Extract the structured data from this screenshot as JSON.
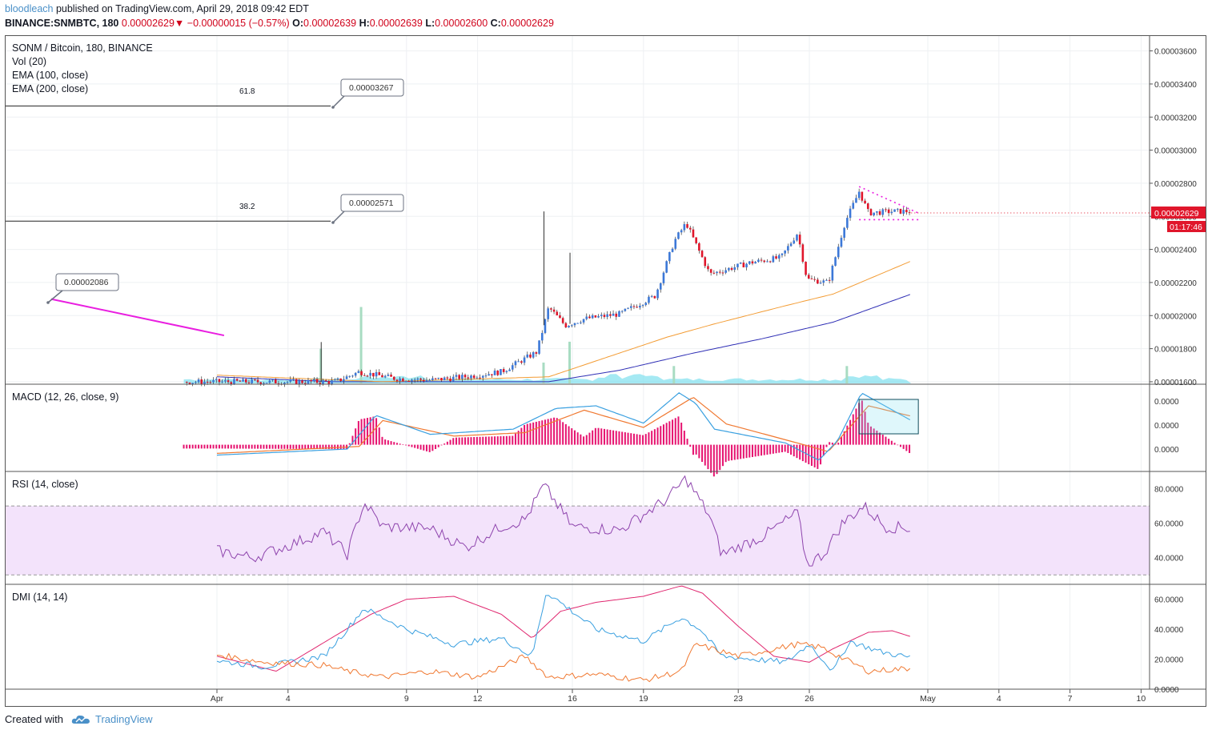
{
  "header": {
    "author": "bloodleach",
    "published_text": "published on TradingView.com, April 29, 2018 09:42 EDT",
    "symbol": "BINANCE:SNMBTC, 180",
    "last": "0.00002629",
    "change_arrow": "▼",
    "change": "−0.00000015 (−0.57%)",
    "o_label": "O:",
    "o": "0.00002639",
    "h_label": "H:",
    "h": "0.00002639",
    "l_label": "L:",
    "l": "0.00002600",
    "c_label": "C:",
    "c": "0.00002629"
  },
  "legend": {
    "title": "SONM / Bitcoin, 180, BINANCE",
    "vol": "Vol (20)",
    "ema100": "EMA (100, close)",
    "ema200": "EMA (200, close)",
    "macd": "MACD (12, 26, close, 9)",
    "rsi": "RSI (14, close)",
    "dmi": "DMI (14, 14)"
  },
  "annotations": {
    "fib_618_label": "61.8",
    "fib_382_label": "38.2",
    "callout_1": "0.00003267",
    "callout_2": "0.00002571",
    "callout_3": "0.00002086"
  },
  "price_tag": {
    "price": "0.00002629",
    "countdown": "01:17:46"
  },
  "footer": {
    "created_with": "Created with",
    "brand": "TradingView",
    "icon": "tradingview-cloud-icon"
  },
  "colors": {
    "up": "#3c78d8",
    "down": "#e0162b",
    "ema100": "#f39c34",
    "ema200": "#2f2fb5",
    "trendline": "#e91ee0",
    "macd_line": "#3aa0e0",
    "signal_line": "#f07830",
    "histogram": "#e6126f",
    "rsi": "#8e44ad",
    "rsi_band": "#f3e3fb",
    "dmi_plus": "#3aa0e0",
    "dmi_minus": "#f07830",
    "adx": "#e0276f",
    "volume": "#7fe0ee"
  },
  "chart_data": [
    {
      "type": "candlestick",
      "title": "SONM / Bitcoin, 180, BINANCE",
      "x_ticks": [
        "Apr",
        "4",
        "9",
        "12",
        "16",
        "19",
        "23",
        "26",
        "May",
        "4",
        "7",
        "10"
      ],
      "y_ticks": [
        "0.00003600",
        "0.00003400",
        "0.00003200",
        "0.00003000",
        "0.00002800",
        "0.00002600",
        "0.00002400",
        "0.00002200",
        "0.00002000",
        "0.00001800",
        "0.00001600"
      ],
      "ylim": [
        1.59e-05,
        3.69e-05
      ],
      "close_series": [
        {
          "d": 0.0,
          "v": 1.6e-05
        },
        {
          "d": 5.0,
          "v": 1.6e-05
        },
        {
          "d": 6.0,
          "v": 1.66e-05
        },
        {
          "d": 7.5,
          "v": 1.62e-05
        },
        {
          "d": 9.0,
          "v": 1.61e-05
        },
        {
          "d": 10.5,
          "v": 1.63e-05
        },
        {
          "d": 12.0,
          "v": 1.66e-05
        },
        {
          "d": 13.5,
          "v": 1.78e-05
        },
        {
          "d": 14.0,
          "v": 2.05e-05
        },
        {
          "d": 14.7,
          "v": 1.94e-05
        },
        {
          "d": 15.5,
          "v": 1.98e-05
        },
        {
          "d": 17.0,
          "v": 2.01e-05
        },
        {
          "d": 18.5,
          "v": 2.12e-05
        },
        {
          "d": 19.3,
          "v": 2.45e-05
        },
        {
          "d": 19.8,
          "v": 2.56e-05
        },
        {
          "d": 20.8,
          "v": 2.25e-05
        },
        {
          "d": 22.5,
          "v": 2.32e-05
        },
        {
          "d": 23.8,
          "v": 2.35e-05
        },
        {
          "d": 24.5,
          "v": 2.5e-05
        },
        {
          "d": 24.9,
          "v": 2.22e-05
        },
        {
          "d": 25.8,
          "v": 2.2e-05
        },
        {
          "d": 26.5,
          "v": 2.56e-05
        },
        {
          "d": 27.1,
          "v": 2.75e-05
        },
        {
          "d": 27.5,
          "v": 2.62e-05
        },
        {
          "d": 28.5,
          "v": 2.63e-05
        },
        {
          "d": 29.3,
          "v": 2.63e-05
        }
      ],
      "ema100": [
        {
          "d": 0.0,
          "v": 1.64e-05
        },
        {
          "d": 7.0,
          "v": 1.6e-05
        },
        {
          "d": 14.0,
          "v": 1.63e-05
        },
        {
          "d": 16.5,
          "v": 1.75e-05
        },
        {
          "d": 19.0,
          "v": 1.87e-05
        },
        {
          "d": 21.0,
          "v": 1.95e-05
        },
        {
          "d": 24.0,
          "v": 2.06e-05
        },
        {
          "d": 26.0,
          "v": 2.13e-05
        },
        {
          "d": 29.3,
          "v": 2.33e-05
        }
      ],
      "ema200": [
        {
          "d": 0.0,
          "v": 1.63e-05
        },
        {
          "d": 5.0,
          "v": 1.6e-05
        },
        {
          "d": 14.0,
          "v": 1.6e-05
        },
        {
          "d": 17.0,
          "v": 1.67e-05
        },
        {
          "d": 20.0,
          "v": 1.77e-05
        },
        {
          "d": 23.0,
          "v": 1.86e-05
        },
        {
          "d": 26.0,
          "v": 1.96e-05
        },
        {
          "d": 29.3,
          "v": 2.13e-05
        }
      ],
      "trendline": [
        {
          "d": -7.0,
          "v": 2.1e-05
        },
        {
          "d": 0.3,
          "v": 1.88e-05
        }
      ],
      "fib_levels": [
        {
          "label": "61.8",
          "v": 3.267e-05
        },
        {
          "label": "38.2",
          "v": 2.571e-05
        }
      ],
      "triangle_top": [
        {
          "d": 27.1,
          "v": 2.78e-05
        },
        {
          "d": 29.6,
          "v": 2.62e-05
        }
      ],
      "triangle_bottom": [
        {
          "d": 27.1,
          "v": 2.58e-05
        },
        {
          "d": 29.6,
          "v": 2.58e-05
        }
      ],
      "volume_spikes": [
        {
          "d": 4.4,
          "v": 0.1
        },
        {
          "d": 6.1,
          "v": 0.22
        },
        {
          "d": 13.8,
          "v": 0.06
        },
        {
          "d": 14.9,
          "v": 0.12
        },
        {
          "d": 19.3,
          "v": 0.05
        },
        {
          "d": 26.6,
          "v": 0.05
        }
      ]
    },
    {
      "type": "line",
      "title": "MACD (12, 26, close, 9)",
      "y_ticks": [
        "0.0000",
        "0.0000",
        "0.0000"
      ],
      "macd": [
        {
          "d": 0.0,
          "v": -12
        },
        {
          "d": 5.5,
          "v": -5
        },
        {
          "d": 6.7,
          "v": 34
        },
        {
          "d": 9.0,
          "v": 12
        },
        {
          "d": 12.5,
          "v": 18
        },
        {
          "d": 14.3,
          "v": 42
        },
        {
          "d": 16.0,
          "v": 45
        },
        {
          "d": 18.0,
          "v": 25
        },
        {
          "d": 19.5,
          "v": 60
        },
        {
          "d": 20.2,
          "v": 48
        },
        {
          "d": 21.0,
          "v": 18
        },
        {
          "d": 24.0,
          "v": 2
        },
        {
          "d": 25.4,
          "v": -18
        },
        {
          "d": 26.2,
          "v": 5
        },
        {
          "d": 27.2,
          "v": 60
        },
        {
          "d": 29.3,
          "v": 28
        }
      ],
      "signal": [
        {
          "d": 0.0,
          "v": -10
        },
        {
          "d": 6.0,
          "v": -2
        },
        {
          "d": 7.0,
          "v": 28
        },
        {
          "d": 10.0,
          "v": 10
        },
        {
          "d": 13.0,
          "v": 14
        },
        {
          "d": 15.5,
          "v": 40
        },
        {
          "d": 18.0,
          "v": 20
        },
        {
          "d": 20.1,
          "v": 55
        },
        {
          "d": 21.5,
          "v": 24
        },
        {
          "d": 24.5,
          "v": 2
        },
        {
          "d": 25.8,
          "v": -8
        },
        {
          "d": 27.5,
          "v": 45
        },
        {
          "d": 29.3,
          "v": 33
        }
      ]
    },
    {
      "type": "line",
      "title": "RSI (14, close)",
      "y_ticks": [
        "80.0000",
        "60.0000",
        "40.0000"
      ],
      "upper_band": 70,
      "lower_band": 30,
      "values": [
        {
          "d": 0.0,
          "v": 44
        },
        {
          "d": 1.5,
          "v": 40
        },
        {
          "d": 3.0,
          "v": 47
        },
        {
          "d": 4.5,
          "v": 55
        },
        {
          "d": 5.5,
          "v": 42
        },
        {
          "d": 6.2,
          "v": 72
        },
        {
          "d": 7.0,
          "v": 58
        },
        {
          "d": 9.0,
          "v": 57
        },
        {
          "d": 10.5,
          "v": 46
        },
        {
          "d": 12.0,
          "v": 58
        },
        {
          "d": 13.0,
          "v": 62
        },
        {
          "d": 13.8,
          "v": 82
        },
        {
          "d": 15.0,
          "v": 58
        },
        {
          "d": 17.0,
          "v": 56
        },
        {
          "d": 19.0,
          "v": 74
        },
        {
          "d": 19.8,
          "v": 86
        },
        {
          "d": 20.8,
          "v": 64
        },
        {
          "d": 21.3,
          "v": 42
        },
        {
          "d": 23.0,
          "v": 52
        },
        {
          "d": 24.5,
          "v": 66
        },
        {
          "d": 24.9,
          "v": 36
        },
        {
          "d": 25.6,
          "v": 42
        },
        {
          "d": 26.4,
          "v": 60
        },
        {
          "d": 27.3,
          "v": 70
        },
        {
          "d": 28.2,
          "v": 58
        },
        {
          "d": 29.3,
          "v": 57
        }
      ]
    },
    {
      "type": "line",
      "title": "DMI (14, 14)",
      "y_ticks": [
        "60.0000",
        "40.0000",
        "20.0000",
        "0.0000"
      ],
      "plus_di": [
        {
          "d": 0.0,
          "v": 19
        },
        {
          "d": 2.0,
          "v": 15
        },
        {
          "d": 4.5,
          "v": 22
        },
        {
          "d": 5.5,
          "v": 40
        },
        {
          "d": 6.2,
          "v": 54
        },
        {
          "d": 8.0,
          "v": 40
        },
        {
          "d": 10.0,
          "v": 30
        },
        {
          "d": 12.0,
          "v": 34
        },
        {
          "d": 13.3,
          "v": 22
        },
        {
          "d": 13.9,
          "v": 65
        },
        {
          "d": 16.0,
          "v": 40
        },
        {
          "d": 18.0,
          "v": 32
        },
        {
          "d": 19.6,
          "v": 48
        },
        {
          "d": 20.4,
          "v": 40
        },
        {
          "d": 21.3,
          "v": 22
        },
        {
          "d": 24.0,
          "v": 18
        },
        {
          "d": 25.0,
          "v": 30
        },
        {
          "d": 26.0,
          "v": 12
        },
        {
          "d": 26.7,
          "v": 32
        },
        {
          "d": 28.0,
          "v": 25
        },
        {
          "d": 29.3,
          "v": 21
        }
      ]
    }
  ]
}
